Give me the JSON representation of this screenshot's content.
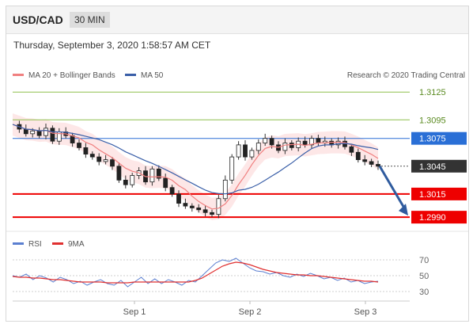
{
  "header": {
    "symbol": "USD/CAD",
    "interval": "30 MIN"
  },
  "timestamp": "Thursday, September 3, 2020 1:58:57 AM CET",
  "legend": {
    "ma20": "MA 20 + Bollinger Bands",
    "ma50": "MA 50",
    "credit": "Research © 2020 Trading Central"
  },
  "colors": {
    "ma20": "#f08080",
    "ma50": "#3a5fa8",
    "bands": "#fbd3d3",
    "support": "#ee0000",
    "resistance": "#8fbf4f",
    "pivot": "#2a6fd6",
    "current": "#333333",
    "rsi": "#5b7fd0",
    "rsi_ma": "#e03030"
  },
  "chart_data": [
    {
      "type": "candlestick",
      "series": [
        {
          "name": "MA 20 + Bollinger Bands"
        },
        {
          "name": "MA 50"
        }
      ],
      "ylim": [
        2985,
        3132
      ],
      "levels": [
        {
          "value": "1.3125",
          "num": 3125,
          "kind": "resistance"
        },
        {
          "value": "1.3095",
          "num": 3095,
          "kind": "resistance"
        },
        {
          "value": "1.3075",
          "num": 3075,
          "kind": "pivot"
        },
        {
          "value": "1.3045",
          "num": 3045,
          "kind": "current"
        },
        {
          "value": "1.3015",
          "num": 3015,
          "kind": "support"
        },
        {
          "value": "1.2990",
          "num": 2990,
          "kind": "support"
        }
      ],
      "x_labels": [
        "Sep 1",
        "Sep 2",
        "Sep 3"
      ],
      "close_path": [
        3090,
        3085,
        3080,
        3083,
        3078,
        3086,
        3072,
        3082,
        3078,
        3070,
        3065,
        3058,
        3055,
        3050,
        3052,
        3045,
        3030,
        3025,
        3035,
        3040,
        3028,
        3042,
        3032,
        3022,
        3015,
        3005,
        3002,
        3000,
        2998,
        2995,
        2993,
        3010,
        3030,
        3055,
        3068,
        3055,
        3062,
        3070,
        3075,
        3068,
        3062,
        3070,
        3065,
        3072,
        3068,
        3075,
        3070,
        3072,
        3068,
        3072,
        3066,
        3060,
        3052,
        3050,
        3047,
        3045
      ],
      "forecast": {
        "from": 3045,
        "to": 2990
      }
    },
    {
      "type": "line",
      "title": "RSI",
      "series": [
        {
          "name": "RSI"
        },
        {
          "name": "9MA"
        }
      ],
      "ylim": [
        22,
        78
      ],
      "y_ticks": [
        "70",
        "50",
        "30"
      ],
      "x_labels": [
        "Sep 1",
        "Sep 2",
        "Sep 3"
      ],
      "rsi_path": [
        50,
        48,
        52,
        45,
        50,
        47,
        42,
        48,
        45,
        40,
        43,
        38,
        42,
        45,
        40,
        38,
        44,
        36,
        42,
        48,
        40,
        46,
        40,
        45,
        42,
        38,
        44,
        42,
        50,
        58,
        66,
        70,
        68,
        72,
        66,
        60,
        56,
        55,
        52,
        54,
        50,
        48,
        52,
        49,
        53,
        50,
        46,
        48,
        44,
        47,
        42,
        44,
        40,
        42,
        43
      ],
      "ma_path": [
        49,
        48,
        48,
        47,
        47,
        46,
        45,
        45,
        44,
        43,
        42,
        42,
        42,
        42,
        41,
        41,
        41,
        41,
        42,
        42,
        42,
        42,
        42,
        42,
        42,
        42,
        42,
        44,
        47,
        52,
        57,
        62,
        65,
        67,
        66,
        64,
        61,
        58,
        56,
        54,
        53,
        52,
        51,
        51,
        50,
        50,
        49,
        48,
        47,
        46,
        45,
        44,
        43,
        43,
        42
      ]
    }
  ]
}
